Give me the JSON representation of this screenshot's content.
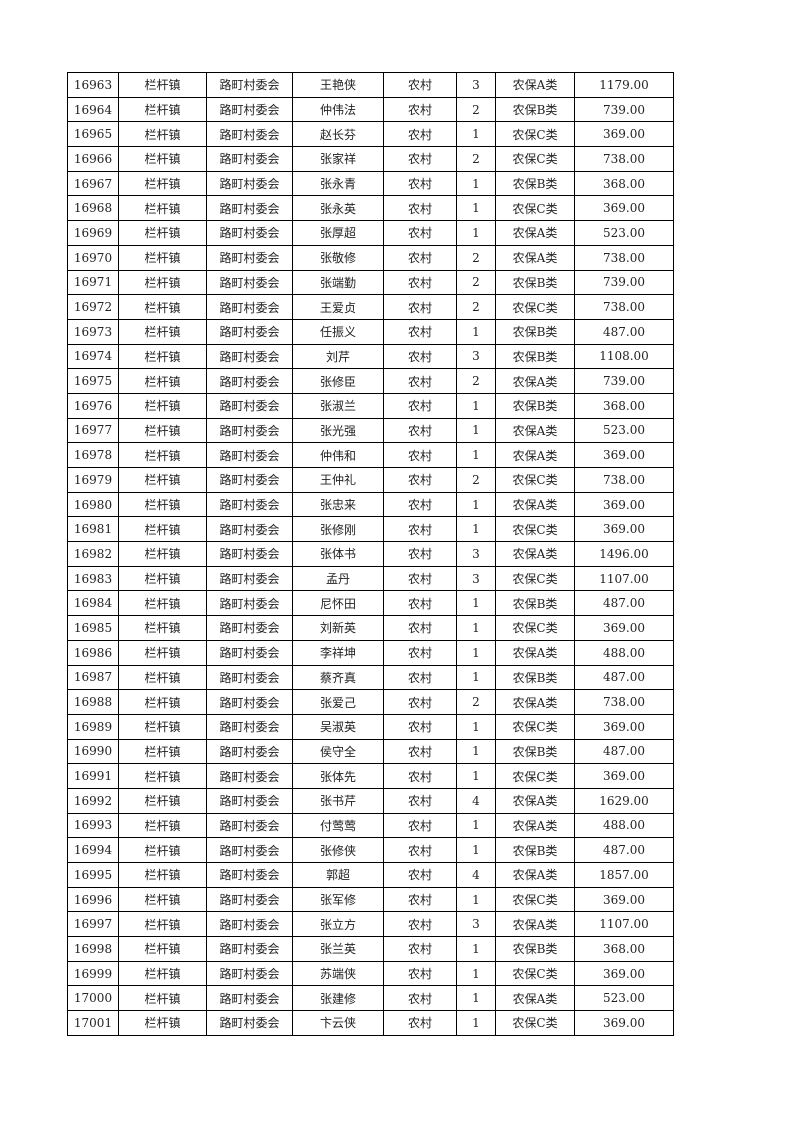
{
  "table": {
    "rows": [
      [
        "16963",
        "栏杆镇",
        "路町村委会",
        "王艳侠",
        "农村",
        "3",
        "农保A类",
        "1179.00"
      ],
      [
        "16964",
        "栏杆镇",
        "路町村委会",
        "仲伟法",
        "农村",
        "2",
        "农保B类",
        "739.00"
      ],
      [
        "16965",
        "栏杆镇",
        "路町村委会",
        "赵长芬",
        "农村",
        "1",
        "农保C类",
        "369.00"
      ],
      [
        "16966",
        "栏杆镇",
        "路町村委会",
        "张家祥",
        "农村",
        "2",
        "农保C类",
        "738.00"
      ],
      [
        "16967",
        "栏杆镇",
        "路町村委会",
        "张永青",
        "农村",
        "1",
        "农保B类",
        "368.00"
      ],
      [
        "16968",
        "栏杆镇",
        "路町村委会",
        "张永英",
        "农村",
        "1",
        "农保C类",
        "369.00"
      ],
      [
        "16969",
        "栏杆镇",
        "路町村委会",
        "张厚超",
        "农村",
        "1",
        "农保A类",
        "523.00"
      ],
      [
        "16970",
        "栏杆镇",
        "路町村委会",
        "张敬修",
        "农村",
        "2",
        "农保A类",
        "738.00"
      ],
      [
        "16971",
        "栏杆镇",
        "路町村委会",
        "张端勤",
        "农村",
        "2",
        "农保B类",
        "739.00"
      ],
      [
        "16972",
        "栏杆镇",
        "路町村委会",
        "王爱贞",
        "农村",
        "2",
        "农保C类",
        "738.00"
      ],
      [
        "16973",
        "栏杆镇",
        "路町村委会",
        "任振义",
        "农村",
        "1",
        "农保B类",
        "487.00"
      ],
      [
        "16974",
        "栏杆镇",
        "路町村委会",
        "刘芹",
        "农村",
        "3",
        "农保B类",
        "1108.00"
      ],
      [
        "16975",
        "栏杆镇",
        "路町村委会",
        "张修臣",
        "农村",
        "2",
        "农保A类",
        "739.00"
      ],
      [
        "16976",
        "栏杆镇",
        "路町村委会",
        "张淑兰",
        "农村",
        "1",
        "农保B类",
        "368.00"
      ],
      [
        "16977",
        "栏杆镇",
        "路町村委会",
        "张光强",
        "农村",
        "1",
        "农保A类",
        "523.00"
      ],
      [
        "16978",
        "栏杆镇",
        "路町村委会",
        "仲伟和",
        "农村",
        "1",
        "农保A类",
        "369.00"
      ],
      [
        "16979",
        "栏杆镇",
        "路町村委会",
        "王仲礼",
        "农村",
        "2",
        "农保C类",
        "738.00"
      ],
      [
        "16980",
        "栏杆镇",
        "路町村委会",
        "张忠来",
        "农村",
        "1",
        "农保A类",
        "369.00"
      ],
      [
        "16981",
        "栏杆镇",
        "路町村委会",
        "张修刚",
        "农村",
        "1",
        "农保C类",
        "369.00"
      ],
      [
        "16982",
        "栏杆镇",
        "路町村委会",
        "张体书",
        "农村",
        "3",
        "农保A类",
        "1496.00"
      ],
      [
        "16983",
        "栏杆镇",
        "路町村委会",
        "孟丹",
        "农村",
        "3",
        "农保C类",
        "1107.00"
      ],
      [
        "16984",
        "栏杆镇",
        "路町村委会",
        "尼怀田",
        "农村",
        "1",
        "农保B类",
        "487.00"
      ],
      [
        "16985",
        "栏杆镇",
        "路町村委会",
        "刘新英",
        "农村",
        "1",
        "农保C类",
        "369.00"
      ],
      [
        "16986",
        "栏杆镇",
        "路町村委会",
        "李祥坤",
        "农村",
        "1",
        "农保A类",
        "488.00"
      ],
      [
        "16987",
        "栏杆镇",
        "路町村委会",
        "蔡齐真",
        "农村",
        "1",
        "农保B类",
        "487.00"
      ],
      [
        "16988",
        "栏杆镇",
        "路町村委会",
        "张爱己",
        "农村",
        "2",
        "农保A类",
        "738.00"
      ],
      [
        "16989",
        "栏杆镇",
        "路町村委会",
        "吴淑英",
        "农村",
        "1",
        "农保C类",
        "369.00"
      ],
      [
        "16990",
        "栏杆镇",
        "路町村委会",
        "侯守全",
        "农村",
        "1",
        "农保B类",
        "487.00"
      ],
      [
        "16991",
        "栏杆镇",
        "路町村委会",
        "张体先",
        "农村",
        "1",
        "农保C类",
        "369.00"
      ],
      [
        "16992",
        "栏杆镇",
        "路町村委会",
        "张书芹",
        "农村",
        "4",
        "农保A类",
        "1629.00"
      ],
      [
        "16993",
        "栏杆镇",
        "路町村委会",
        "付莺莺",
        "农村",
        "1",
        "农保A类",
        "488.00"
      ],
      [
        "16994",
        "栏杆镇",
        "路町村委会",
        "张修侠",
        "农村",
        "1",
        "农保B类",
        "487.00"
      ],
      [
        "16995",
        "栏杆镇",
        "路町村委会",
        "郭超",
        "农村",
        "4",
        "农保A类",
        "1857.00"
      ],
      [
        "16996",
        "栏杆镇",
        "路町村委会",
        "张军修",
        "农村",
        "1",
        "农保C类",
        "369.00"
      ],
      [
        "16997",
        "栏杆镇",
        "路町村委会",
        "张立方",
        "农村",
        "3",
        "农保A类",
        "1107.00"
      ],
      [
        "16998",
        "栏杆镇",
        "路町村委会",
        "张兰英",
        "农村",
        "1",
        "农保B类",
        "368.00"
      ],
      [
        "16999",
        "栏杆镇",
        "路町村委会",
        "苏端侠",
        "农村",
        "1",
        "农保C类",
        "369.00"
      ],
      [
        "17000",
        "栏杆镇",
        "路町村委会",
        "张建修",
        "农村",
        "1",
        "农保A类",
        "523.00"
      ],
      [
        "17001",
        "栏杆镇",
        "路町村委会",
        "卞云侠",
        "农村",
        "1",
        "农保C类",
        "369.00"
      ]
    ]
  }
}
